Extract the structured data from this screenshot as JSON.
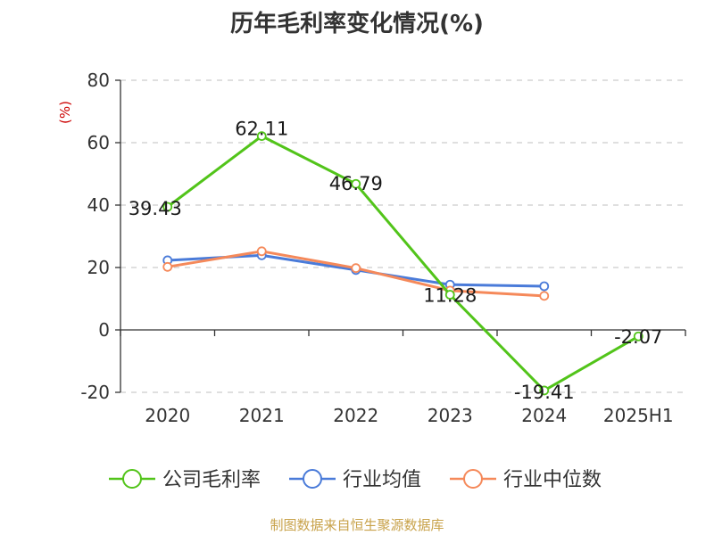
{
  "chart_data": {
    "type": "line",
    "title": "历年毛利率变化情况(%)",
    "ylabel": "(%)",
    "xlabel": "",
    "categories": [
      "2020",
      "2021",
      "2022",
      "2023",
      "2024",
      "2025H1"
    ],
    "ylim": [
      -20,
      80
    ],
    "yticks": [
      -20,
      0,
      20,
      40,
      60,
      80
    ],
    "grid": true,
    "legend_position": "bottom",
    "series": [
      {
        "name": "公司毛利率",
        "color": "#52c41a",
        "values": [
          39.43,
          62.11,
          46.79,
          11.28,
          -19.41,
          -2.07
        ],
        "labels": [
          "39.43",
          "62.11",
          "46.79",
          "11.28",
          "-19.41",
          "-2.07"
        ]
      },
      {
        "name": "行业均值",
        "color": "#4a7bd9",
        "values": [
          22.3,
          23.9,
          19.2,
          14.5,
          14.0,
          null
        ]
      },
      {
        "name": "行业中位数",
        "color": "#f5895a",
        "values": [
          20.2,
          25.2,
          19.8,
          12.6,
          10.9,
          null
        ]
      }
    ]
  },
  "source": "制图数据来自恒生聚源数据库"
}
